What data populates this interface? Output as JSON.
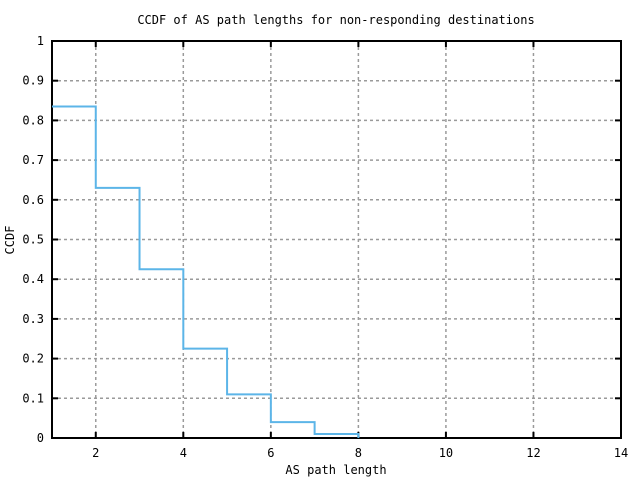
{
  "chart_data": {
    "type": "line",
    "style": "steps",
    "title": "CCDF of AS path lengths for non-responding destinations",
    "xlabel": "AS path length",
    "ylabel": "CCDF",
    "xlim": [
      1,
      14
    ],
    "ylim": [
      0,
      1
    ],
    "xticks": [
      2,
      4,
      6,
      8,
      10,
      12,
      14
    ],
    "yticks": [
      0,
      0.1,
      0.2,
      0.3,
      0.4,
      0.5,
      0.6,
      0.7,
      0.8,
      0.9,
      1
    ],
    "grid": true,
    "legend": "none",
    "series": [
      {
        "name": "CCDF",
        "x": [
          1,
          2,
          3,
          4,
          5,
          6,
          7,
          8
        ],
        "y": [
          0.835,
          0.63,
          0.425,
          0.225,
          0.11,
          0.04,
          0.01,
          0
        ]
      }
    ],
    "colors": {
      "line": "#5cb5e8",
      "grid": "#9a9a9a",
      "axis": "#000000",
      "background": "#ffffff"
    }
  }
}
